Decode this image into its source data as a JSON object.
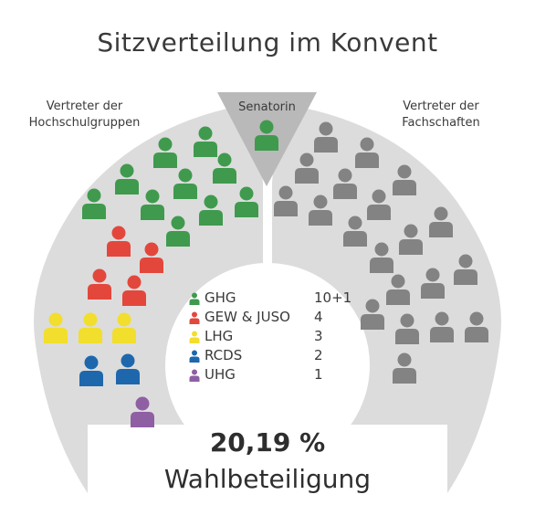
{
  "title": "Sitzverteilung im Konvent",
  "groups": {
    "left_label_1": "Vertreter der",
    "left_label_2": "Hochschulgruppen",
    "center_label": "Senatorin",
    "right_label_1": "Vertreter der",
    "right_label_2": "Fachschaften"
  },
  "colors": {
    "GHG": "#3f9a4e",
    "GEW & JUSO": "#e3473c",
    "LHG": "#f2de2c",
    "RCDS": "#1e67ad",
    "UHG": "#8f5fa3",
    "Fachschaften": "#838383",
    "arc": "#dcdcdc",
    "center_wedge": "#b9b9b9"
  },
  "legend": [
    {
      "party": "GHG",
      "seats": "10+1"
    },
    {
      "party": "GEW & JUSO",
      "seats": "4"
    },
    {
      "party": "LHG",
      "seats": "3"
    },
    {
      "party": "RCDS",
      "seats": "2"
    },
    {
      "party": "UHG",
      "seats": "1"
    }
  ],
  "seats": {
    "hochschulgruppen": {
      "GHG": 10,
      "GEW & JUSO": 4,
      "LHG": 3,
      "RCDS": 2,
      "UHG": 1
    },
    "senatorin": {
      "GHG": 1
    },
    "fachschaften": 20
  },
  "turnout": {
    "value": "20,19 %",
    "label": "Wahlbeteiligung"
  }
}
